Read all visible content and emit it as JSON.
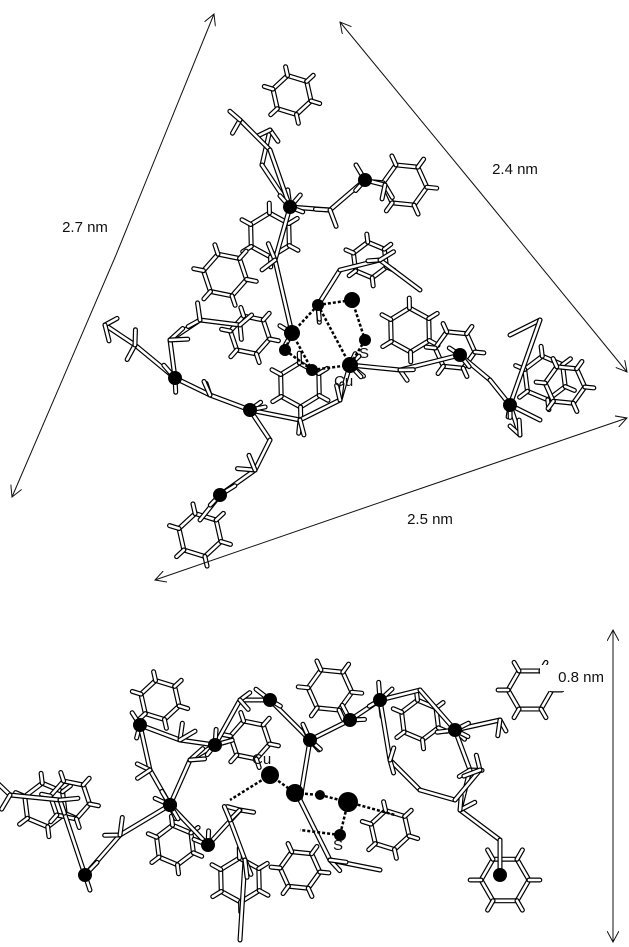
{
  "top_view": {
    "dimensions": [
      "2.7 nm",
      "2.4 nm",
      "2.5 nm"
    ],
    "atom_labels": {
      "copper": "Cu",
      "sulfur": "S"
    }
  },
  "side_view": {
    "dimensions": [
      "0.8 nm"
    ],
    "atom_labels": {
      "copper": "Cu",
      "sulfur": "S"
    }
  }
}
